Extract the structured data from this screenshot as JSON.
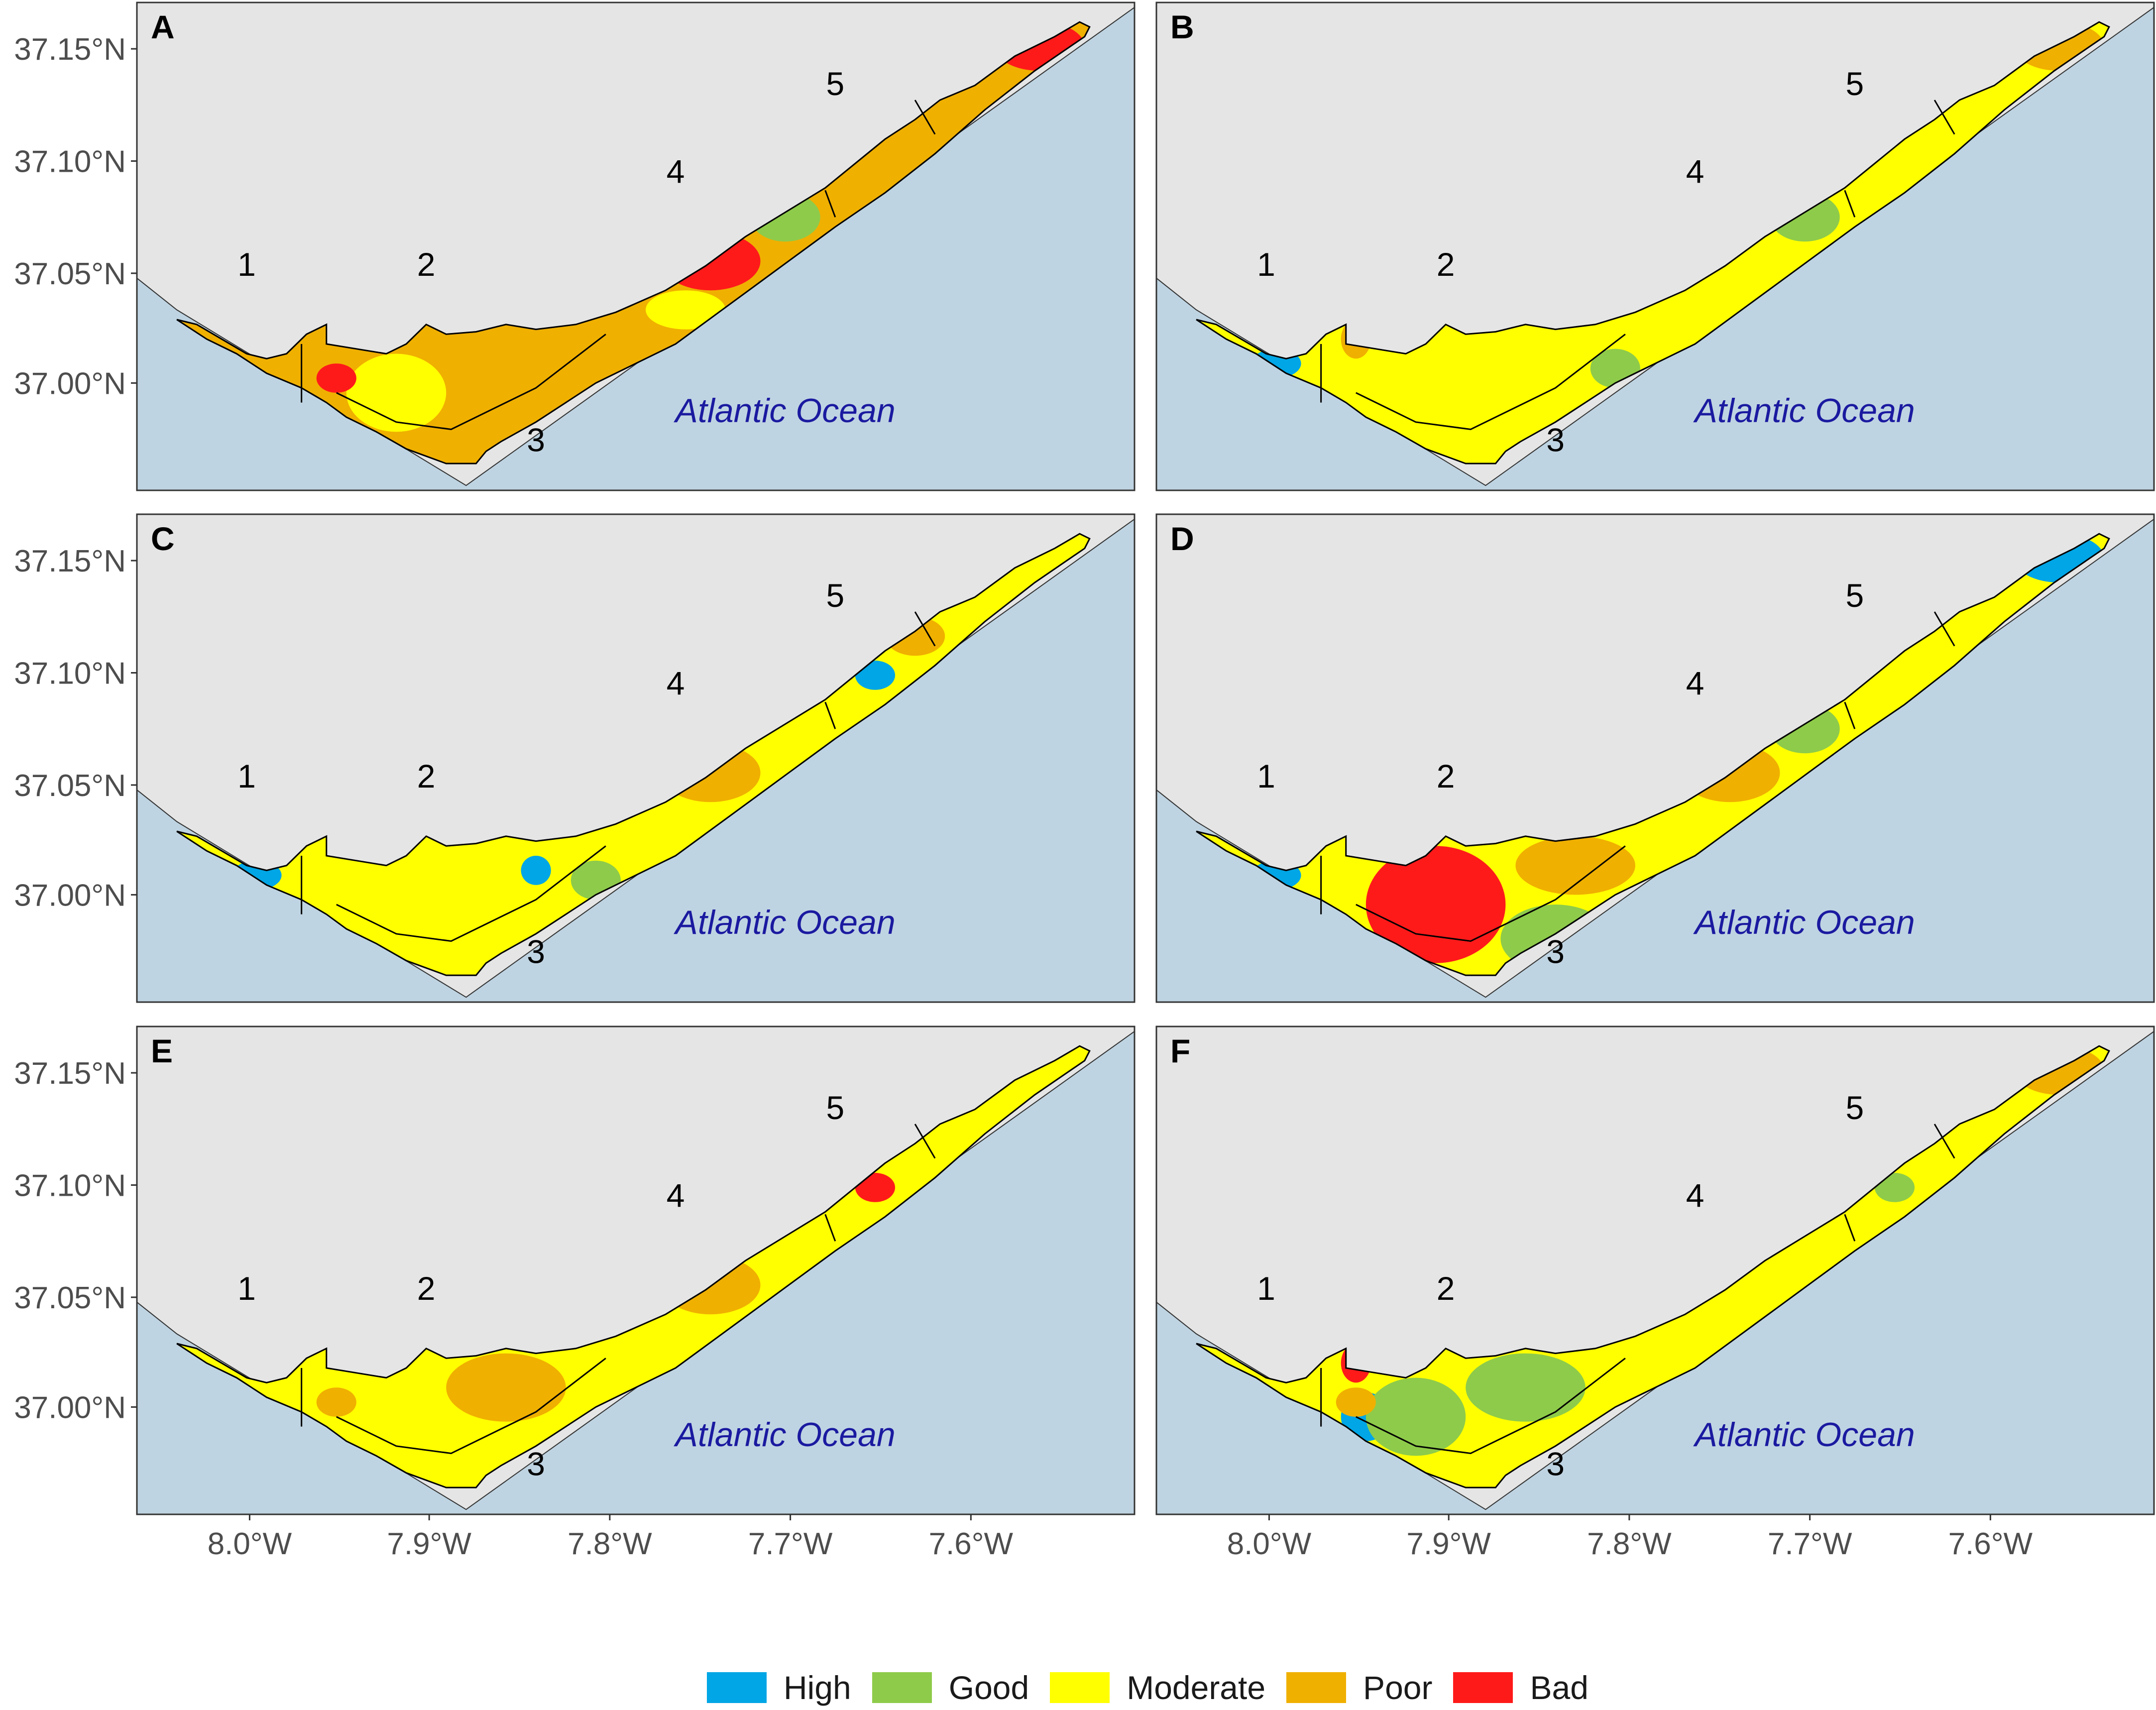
{
  "figure": {
    "ocean_label": "Atlantic Ocean",
    "colors": {
      "land": "#e5e5e5",
      "ocean": "#bfd4e2",
      "border": "#333333",
      "High": "#00a6e6",
      "Good": "#8ecb4a",
      "Moderate": "#ffff00",
      "Poor": "#f0b000",
      "Bad": "#ff1a1a"
    },
    "lat_ticks": [
      "37.00°N",
      "37.05°N",
      "37.10°N",
      "37.15°N"
    ],
    "lon_ticks": [
      "8.0°W",
      "7.9°W",
      "7.8°W",
      "7.7°W",
      "7.6°W"
    ],
    "zone_numbers": [
      "1",
      "2",
      "3",
      "4",
      "5"
    ],
    "legend": [
      {
        "label": "High",
        "color": "#00a6e6"
      },
      {
        "label": "Good",
        "color": "#8ecb4a"
      },
      {
        "label": "Moderate",
        "color": "#ffff00"
      },
      {
        "label": "Poor",
        "color": "#f0b000"
      },
      {
        "label": "Bad",
        "color": "#ff1a1a"
      }
    ],
    "panels": [
      {
        "tag": "A",
        "base": "Poor",
        "patches": [
          {
            "cls": "Moderate",
            "region": "west-lagoon"
          },
          {
            "cls": "Moderate",
            "region": "east-strip"
          },
          {
            "cls": "Good",
            "region": "z4-mid"
          },
          {
            "cls": "Bad",
            "region": "z4-channel"
          },
          {
            "cls": "Bad",
            "region": "z5-tip"
          },
          {
            "cls": "Bad",
            "region": "west-spots"
          }
        ]
      },
      {
        "tag": "B",
        "base": "Moderate",
        "patches": [
          {
            "cls": "Good",
            "region": "z4-mid"
          },
          {
            "cls": "Good",
            "region": "z3-east"
          },
          {
            "cls": "Poor",
            "region": "west-inlet"
          },
          {
            "cls": "Poor",
            "region": "z5-tip"
          },
          {
            "cls": "High",
            "region": "west-edge"
          }
        ]
      },
      {
        "tag": "C",
        "base": "Moderate",
        "patches": [
          {
            "cls": "Poor",
            "region": "z4-channel"
          },
          {
            "cls": "Poor",
            "region": "z5-north"
          },
          {
            "cls": "Good",
            "region": "z3-east"
          },
          {
            "cls": "High",
            "region": "z3-east-spot"
          },
          {
            "cls": "High",
            "region": "west-edge"
          },
          {
            "cls": "High",
            "region": "z5-spot"
          }
        ]
      },
      {
        "tag": "D",
        "base": "Moderate",
        "patches": [
          {
            "cls": "Bad",
            "region": "central-block"
          },
          {
            "cls": "Poor",
            "region": "z3-ne"
          },
          {
            "cls": "High",
            "region": "z3-circle"
          },
          {
            "cls": "Good",
            "region": "z3-circle-ring"
          },
          {
            "cls": "Poor",
            "region": "z4-channel"
          },
          {
            "cls": "High",
            "region": "z5-tip"
          },
          {
            "cls": "Good",
            "region": "z4-mid"
          },
          {
            "cls": "High",
            "region": "west-edge"
          }
        ]
      },
      {
        "tag": "E",
        "base": "Moderate",
        "patches": [
          {
            "cls": "Poor",
            "region": "z4-channel"
          },
          {
            "cls": "Poor",
            "region": "z3-north"
          },
          {
            "cls": "Bad",
            "region": "z5-spot"
          },
          {
            "cls": "Poor",
            "region": "west-spots"
          }
        ]
      },
      {
        "tag": "F",
        "base": "Moderate",
        "patches": [
          {
            "cls": "Good",
            "region": "z3-north"
          },
          {
            "cls": "High",
            "region": "west-lagoon-spot"
          },
          {
            "cls": "Good",
            "region": "west-lagoon"
          },
          {
            "cls": "Poor",
            "region": "z5-tip"
          },
          {
            "cls": "Poor",
            "region": "west-spots"
          },
          {
            "cls": "Good",
            "region": "z5-spot"
          },
          {
            "cls": "Bad",
            "region": "west-inlet"
          }
        ]
      }
    ]
  }
}
